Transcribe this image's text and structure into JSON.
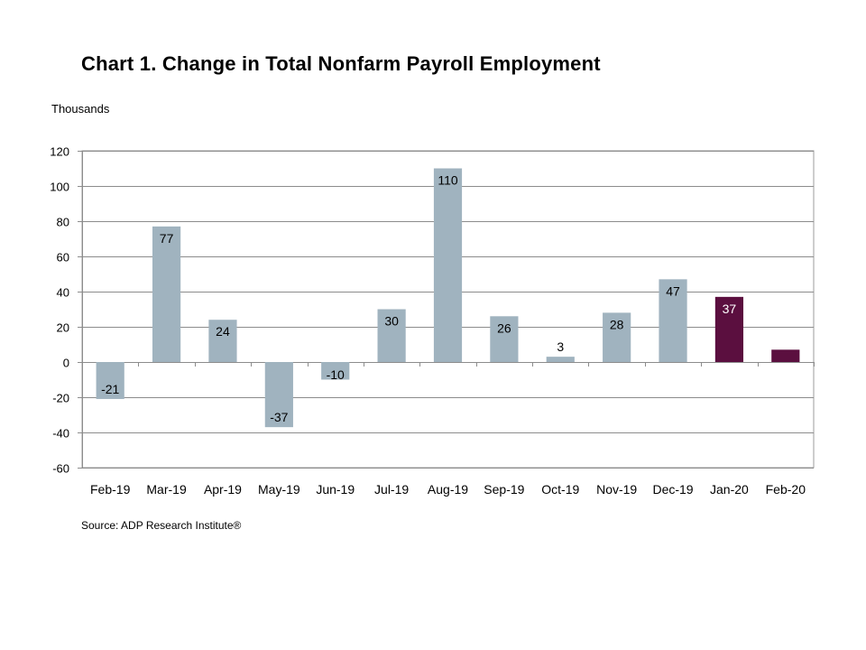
{
  "chart_data": {
    "type": "bar",
    "title": "Chart 1. Change in Total Nonfarm Payroll Employment",
    "ylabel": "Thousands",
    "xlabel": "",
    "categories": [
      "Feb-19",
      "Mar-19",
      "Apr-19",
      "May-19",
      "Jun-19",
      "Jul-19",
      "Aug-19",
      "Sep-19",
      "Oct-19",
      "Nov-19",
      "Dec-19",
      "Jan-20",
      "Feb-20"
    ],
    "values": [
      -21,
      77,
      24,
      -37,
      -10,
      30,
      110,
      26,
      3,
      28,
      47,
      37,
      7
    ],
    "bar_colors": [
      "#a0b3bf",
      "#a0b3bf",
      "#a0b3bf",
      "#a0b3bf",
      "#a0b3bf",
      "#a0b3bf",
      "#a0b3bf",
      "#a0b3bf",
      "#a0b3bf",
      "#a0b3bf",
      "#a0b3bf",
      "#5b0f3f",
      "#5b0f3f"
    ],
    "ylim": [
      -60,
      120
    ],
    "yticks": [
      -60,
      -40,
      -20,
      0,
      20,
      40,
      60,
      80,
      100,
      120
    ],
    "grid": true,
    "legend": "none",
    "source": "Source: ADP Research Institute®"
  }
}
